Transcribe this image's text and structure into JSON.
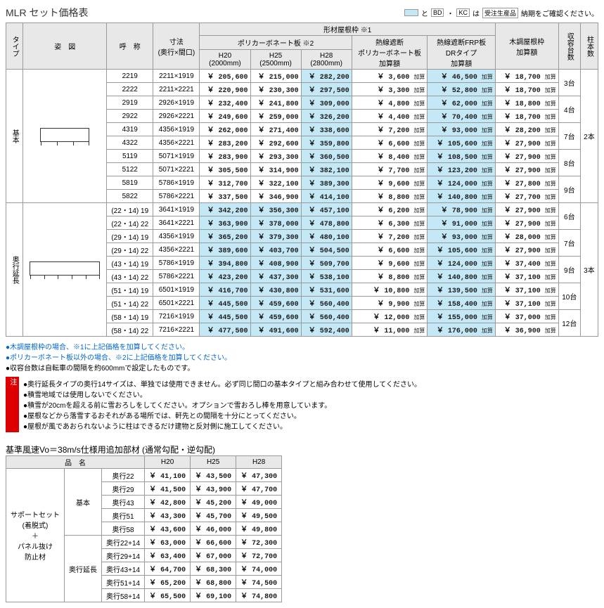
{
  "title": "MLR セット価格表",
  "legend": {
    "and": "と",
    "tags": [
      "BD",
      "KC"
    ],
    "trail": "は",
    "boxed": "受注生産品",
    "tail": "納期をご確認ください。"
  },
  "columns": {
    "type": "タイプ",
    "figure": "姿　図",
    "name": "呼　称",
    "dim": "寸法",
    "dim_sub": "(奥行×間口)",
    "group_top": "形材屋根枠 ※1",
    "poly_group": "ポリカーボネート板 ※2",
    "h20": "H20",
    "h20_sub": "(2000mm)",
    "h25": "H25",
    "h25_sub": "(2500mm)",
    "h28": "H28",
    "h28_sub": "(2800mm)",
    "heat": "熱線遮断",
    "heat2": "ポリカーボネート板",
    "heat3": "加算額",
    "frp": "熱線遮断FRP板",
    "frp2": "DRタイプ",
    "frp3": "加算額",
    "wood": "木調屋根枠",
    "wood2": "加算額",
    "cap": "収容台数",
    "pillar": "柱本数"
  },
  "types": {
    "basic": "基本",
    "ext": "奥行延長"
  },
  "suffix": "加算",
  "rows_basic": [
    {
      "name": "2219",
      "dim": "2211×1919",
      "h20": "205,600",
      "h25": "215,000",
      "h28": "282,200",
      "heat": "3,600",
      "frp": "46,500",
      "wood": "18,700"
    },
    {
      "name": "2222",
      "dim": "2211×2221",
      "h20": "220,900",
      "h25": "230,300",
      "h28": "297,500",
      "heat": "3,300",
      "frp": "52,800",
      "wood": "18,700"
    },
    {
      "name": "2919",
      "dim": "2926×1919",
      "h20": "232,400",
      "h25": "241,800",
      "h28": "309,000",
      "heat": "4,800",
      "frp": "62,000",
      "wood": "18,800"
    },
    {
      "name": "2922",
      "dim": "2926×2221",
      "h20": "249,600",
      "h25": "259,000",
      "h28": "326,200",
      "heat": "4,400",
      "frp": "70,400",
      "wood": "18,700"
    },
    {
      "name": "4319",
      "dim": "4356×1919",
      "h20": "262,000",
      "h25": "271,400",
      "h28": "338,600",
      "heat": "7,200",
      "frp": "93,000",
      "wood": "28,200"
    },
    {
      "name": "4322",
      "dim": "4356×2221",
      "h20": "283,200",
      "h25": "292,600",
      "h28": "359,800",
      "heat": "6,600",
      "frp": "105,600",
      "wood": "27,900"
    },
    {
      "name": "5119",
      "dim": "5071×1919",
      "h20": "283,900",
      "h25": "293,300",
      "h28": "360,500",
      "heat": "8,400",
      "frp": "108,500",
      "wood": "27,900"
    },
    {
      "name": "5122",
      "dim": "5071×2221",
      "h20": "305,500",
      "h25": "314,900",
      "h28": "382,100",
      "heat": "7,700",
      "frp": "123,200",
      "wood": "27,900"
    },
    {
      "name": "5819",
      "dim": "5786×1919",
      "h20": "312,700",
      "h25": "322,100",
      "h28": "389,300",
      "heat": "9,600",
      "frp": "124,000",
      "wood": "27,800"
    },
    {
      "name": "5822",
      "dim": "5786×2221",
      "h20": "337,500",
      "h25": "346,900",
      "h28": "414,100",
      "heat": "8,800",
      "frp": "140,800",
      "wood": "27,700"
    }
  ],
  "rows_ext": [
    {
      "name": "(22・14) 19",
      "dim": "3641×1919",
      "h20": "342,200",
      "h25": "356,300",
      "h28": "457,100",
      "heat": "6,200",
      "frp": "78,900",
      "wood": "27,900"
    },
    {
      "name": "(22・14) 22",
      "dim": "3641×2221",
      "h20": "363,900",
      "h25": "378,000",
      "h28": "478,800",
      "heat": "6,300",
      "frp": "91,000",
      "wood": "27,900"
    },
    {
      "name": "(29・14) 19",
      "dim": "4356×1919",
      "h20": "365,200",
      "h25": "379,300",
      "h28": "480,100",
      "heat": "7,200",
      "frp": "93,000",
      "wood": "28,000"
    },
    {
      "name": "(29・14) 22",
      "dim": "4356×2221",
      "h20": "389,600",
      "h25": "403,700",
      "h28": "504,500",
      "heat": "6,600",
      "frp": "105,600",
      "wood": "27,900"
    },
    {
      "name": "(43・14) 19",
      "dim": "5786×1919",
      "h20": "394,800",
      "h25": "408,900",
      "h28": "509,700",
      "heat": "9,600",
      "frp": "124,000",
      "wood": "37,400"
    },
    {
      "name": "(43・14) 22",
      "dim": "5786×2221",
      "h20": "423,200",
      "h25": "437,300",
      "h28": "538,100",
      "heat": "8,800",
      "frp": "140,800",
      "wood": "37,100"
    },
    {
      "name": "(51・14) 19",
      "dim": "6501×1919",
      "h20": "416,700",
      "h25": "430,800",
      "h28": "531,600",
      "heat": "10,800",
      "frp": "139,500",
      "wood": "37,100"
    },
    {
      "name": "(51・14) 22",
      "dim": "6501×2221",
      "h20": "445,500",
      "h25": "459,600",
      "h28": "560,400",
      "heat": "9,900",
      "frp": "158,400",
      "wood": "37,100"
    },
    {
      "name": "(58・14) 19",
      "dim": "7216×1919",
      "h20": "445,500",
      "h25": "459,600",
      "h28": "560,400",
      "heat": "12,000",
      "frp": "155,000",
      "wood": "37,000"
    },
    {
      "name": "(58・14) 22",
      "dim": "7216×2221",
      "h20": "477,500",
      "h25": "491,600",
      "h28": "592,400",
      "heat": "11,000",
      "frp": "176,000",
      "wood": "36,900"
    }
  ],
  "caps_basic": [
    "3台",
    "4台",
    "7台",
    "8台",
    "9台"
  ],
  "caps_ext": [
    "6台",
    "7台",
    "9台",
    "10台",
    "12台"
  ],
  "pillars": [
    "2本",
    "3本"
  ],
  "notes": [
    "●木調屋根枠の場合、※1に上記価格を加算してください。",
    "●ポリカーボネート板以外の場合、※2に上記価格を加算してください。",
    "●収容台数は自転車の間隔を約600mmで設定したものです。"
  ],
  "warn_label": "注",
  "warns": [
    "●奥行延長タイプの奥行14サイズは、単独では使用できません。必ず同じ間口の基本タイプと組み合わせて使用してください。",
    "●積雪地域では使用しないでください。",
    "●積雪が20cmを超える前に雪おろしをしてください。オプションで雪おろし棒を用意しています。",
    "●屋根などから落雪するおそれがある場所では、軒先との間隔を十分にとってください。",
    "●屋根が風であおられないように柱はできるだけ建物と反対側に施工してください。"
  ],
  "section2_title": "基準風速Vo＝38m/s仕様用追加部材 (通常勾配・逆勾配)",
  "addon": {
    "col_name": "品　名",
    "h20": "H20",
    "h25": "H25",
    "h28": "H28",
    "rowhead": "サポートセット\n(着脱式)\n＋\nパネル抜け\n防止材",
    "groups": {
      "basic": "基本",
      "ext": "奥行延長"
    },
    "rows_basic": [
      {
        "n": "奥行22",
        "h20": "41,100",
        "h25": "43,500",
        "h28": "47,300"
      },
      {
        "n": "奥行29",
        "h20": "41,500",
        "h25": "43,900",
        "h28": "47,700"
      },
      {
        "n": "奥行43",
        "h20": "42,800",
        "h25": "45,200",
        "h28": "49,000"
      },
      {
        "n": "奥行51",
        "h20": "43,300",
        "h25": "45,700",
        "h28": "49,500"
      },
      {
        "n": "奥行58",
        "h20": "43,600",
        "h25": "46,000",
        "h28": "49,800"
      }
    ],
    "rows_ext": [
      {
        "n": "奥行22+14",
        "h20": "63,000",
        "h25": "66,600",
        "h28": "72,300"
      },
      {
        "n": "奥行29+14",
        "h20": "63,400",
        "h25": "67,000",
        "h28": "72,700"
      },
      {
        "n": "奥行43+14",
        "h20": "64,700",
        "h25": "68,300",
        "h28": "74,000"
      },
      {
        "n": "奥行51+14",
        "h20": "65,200",
        "h25": "68,800",
        "h28": "74,500"
      },
      {
        "n": "奥行58+14",
        "h20": "65,500",
        "h25": "69,100",
        "h28": "74,800"
      }
    ]
  }
}
